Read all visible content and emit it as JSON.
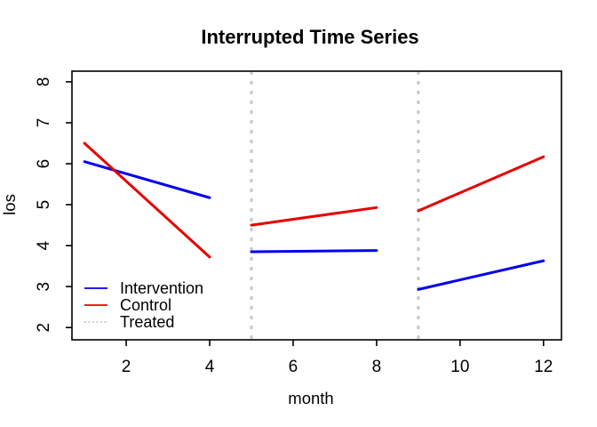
{
  "chart_data": {
    "type": "line",
    "title": "Interrupted Time Series",
    "xlabel": "month",
    "ylabel": "los",
    "xlim": [
      0.7,
      12.43
    ],
    "ylim": [
      1.7,
      8.26
    ],
    "xticks": [
      2,
      4,
      6,
      8,
      10,
      12
    ],
    "yticks": [
      2,
      3,
      4,
      5,
      6,
      7,
      8
    ],
    "grid": false,
    "legend_position": "bottom-left",
    "series": [
      {
        "name": "Intervention",
        "color": "#0000EE",
        "line_style": "solid",
        "segments": [
          [
            [
              1,
              6.05
            ],
            [
              4,
              5.17
            ]
          ],
          [
            [
              5,
              3.85
            ],
            [
              8,
              3.88
            ]
          ],
          [
            [
              9,
              2.93
            ],
            [
              12,
              3.63
            ]
          ]
        ]
      },
      {
        "name": "Control",
        "color": "#E60000",
        "line_style": "solid",
        "segments": [
          [
            [
              1,
              6.5
            ],
            [
              4,
              3.72
            ]
          ],
          [
            [
              5,
              4.5
            ],
            [
              8,
              4.93
            ]
          ],
          [
            [
              9,
              4.85
            ],
            [
              12,
              6.17
            ]
          ]
        ]
      }
    ],
    "treatment_lines": {
      "name": "Treated",
      "x": [
        5,
        9
      ],
      "color": "#C8C8C8",
      "line_style": "dotted"
    },
    "legend": [
      {
        "label": "Intervention",
        "color": "#0000EE",
        "style": "solid"
      },
      {
        "label": "Control",
        "color": "#E60000",
        "style": "solid"
      },
      {
        "label": "Treated",
        "color": "#C8C8C8",
        "style": "dotted"
      }
    ]
  }
}
